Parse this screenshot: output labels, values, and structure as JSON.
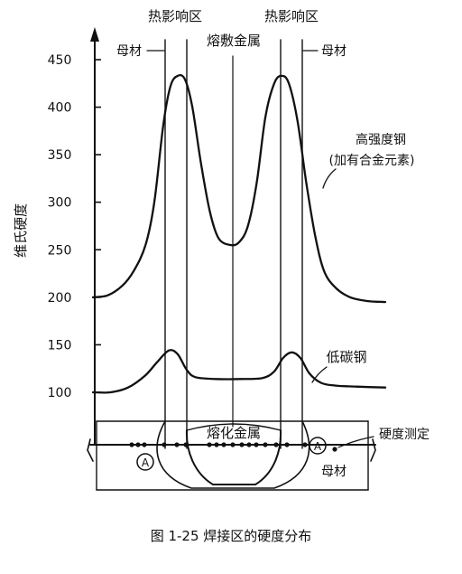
{
  "chart_data": {
    "type": "line",
    "caption": "图 1-25   焊接区的硬度分布",
    "ylabel": "维氏硬度",
    "yticks": [
      100,
      150,
      200,
      250,
      300,
      350,
      400,
      450
    ],
    "ylim": [
      50,
      470
    ],
    "zone_labels": {
      "haz_left": "热影响区",
      "haz_right": "热影响区",
      "base_left": "母材",
      "base_right": "母材",
      "weld_metal": "熔敷金属"
    },
    "series": [
      {
        "name": "高强度钢",
        "name_line2": "(加有合金元素)",
        "points": [
          [
            0.0,
            200
          ],
          [
            0.05,
            202
          ],
          [
            0.1,
            212
          ],
          [
            0.14,
            228
          ],
          [
            0.18,
            255
          ],
          [
            0.21,
            300
          ],
          [
            0.24,
            380
          ],
          [
            0.265,
            422
          ],
          [
            0.29,
            433
          ],
          [
            0.315,
            429
          ],
          [
            0.34,
            400
          ],
          [
            0.37,
            340
          ],
          [
            0.4,
            290
          ],
          [
            0.43,
            262
          ],
          [
            0.47,
            255
          ],
          [
            0.5,
            258
          ],
          [
            0.53,
            275
          ],
          [
            0.56,
            320
          ],
          [
            0.59,
            390
          ],
          [
            0.62,
            425
          ],
          [
            0.645,
            433
          ],
          [
            0.67,
            425
          ],
          [
            0.7,
            385
          ],
          [
            0.73,
            320
          ],
          [
            0.76,
            265
          ],
          [
            0.79,
            228
          ],
          [
            0.83,
            210
          ],
          [
            0.88,
            200
          ],
          [
            0.94,
            196
          ],
          [
            1.0,
            195
          ]
        ]
      },
      {
        "name": "低碳钢",
        "points": [
          [
            0.0,
            100
          ],
          [
            0.06,
            100
          ],
          [
            0.12,
            105
          ],
          [
            0.18,
            118
          ],
          [
            0.22,
            132
          ],
          [
            0.26,
            144
          ],
          [
            0.29,
            140
          ],
          [
            0.32,
            124
          ],
          [
            0.35,
            116
          ],
          [
            0.42,
            114
          ],
          [
            0.5,
            114
          ],
          [
            0.58,
            115
          ],
          [
            0.62,
            122
          ],
          [
            0.65,
            136
          ],
          [
            0.68,
            142
          ],
          [
            0.71,
            136
          ],
          [
            0.74,
            120
          ],
          [
            0.78,
            110
          ],
          [
            0.83,
            107
          ],
          [
            0.9,
            106
          ],
          [
            1.0,
            105
          ]
        ]
      }
    ],
    "cross_section": {
      "weld_label": "熔化金属",
      "hardness_label": "硬度测定",
      "base_label": "母材",
      "marker": "A"
    }
  }
}
